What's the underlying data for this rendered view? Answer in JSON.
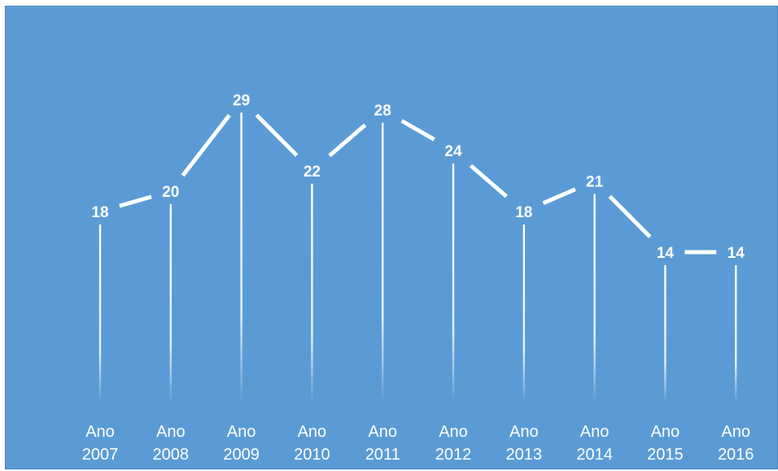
{
  "chart_data": {
    "type": "line",
    "categories": [
      "Ano 2007",
      "Ano 2008",
      "Ano 2009",
      "Ano 2010",
      "Ano 2011",
      "Ano 2012",
      "Ano 2013",
      "Ano 2014",
      "Ano 2015",
      "Ano 2016"
    ],
    "category_lines": [
      [
        "Ano",
        "2007"
      ],
      [
        "Ano",
        "2008"
      ],
      [
        "Ano",
        "2009"
      ],
      [
        "Ano",
        "2010"
      ],
      [
        "Ano",
        "2011"
      ],
      [
        "Ano",
        "2012"
      ],
      [
        "Ano",
        "2013"
      ],
      [
        "Ano",
        "2014"
      ],
      [
        "Ano",
        "2015"
      ],
      [
        "Ano",
        "2016"
      ]
    ],
    "series": [
      {
        "values": [
          18,
          20,
          29,
          22,
          28,
          24,
          18,
          21,
          14,
          14
        ]
      }
    ],
    "ylim": [
      0,
      33
    ],
    "drop_lines": true,
    "data_labels": true,
    "grid": false,
    "legend": "none",
    "colors": {
      "background": "#5b9bd5",
      "line": "#ffffff",
      "text": "#ffffff"
    }
  }
}
